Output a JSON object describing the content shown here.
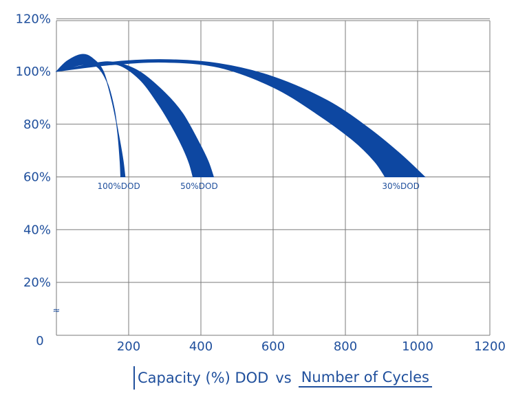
{
  "chart_data": {
    "type": "area",
    "title": "",
    "caption": {
      "left": "Capacity (%) DOD",
      "connector": "vs",
      "right": "Number of Cycles"
    },
    "xlim": [
      0,
      1200
    ],
    "ylim": [
      0,
      120
    ],
    "x_ticks": [
      200,
      400,
      600,
      800,
      1000,
      1200
    ],
    "x_tick_labels": [
      "200",
      "400",
      "600",
      "800",
      "1000",
      "1200"
    ],
    "y_ticks": [
      20,
      40,
      60,
      80,
      100,
      120
    ],
    "y_tick_labels": [
      "20%",
      "40%",
      "60%",
      "80%",
      "100%",
      "120%"
    ],
    "origin_label": "0",
    "axis_break_symbol": "≈",
    "grid": true,
    "color": "#0d47a1",
    "series": [
      {
        "name": "100%DOD",
        "upper": [
          [
            0,
            100
          ],
          [
            30,
            104
          ],
          [
            70,
            106.5
          ],
          [
            100,
            105
          ],
          [
            130,
            100
          ],
          [
            155,
            88
          ],
          [
            175,
            74
          ],
          [
            185,
            66
          ],
          [
            190,
            60
          ]
        ],
        "lower": [
          [
            0,
            100
          ],
          [
            30,
            101
          ],
          [
            70,
            102.5
          ],
          [
            110,
            102
          ],
          [
            140,
            96
          ],
          [
            160,
            86
          ],
          [
            170,
            76
          ],
          [
            176,
            66
          ],
          [
            178,
            60
          ]
        ]
      },
      {
        "name": "50%DOD",
        "upper": [
          [
            0,
            100
          ],
          [
            100,
            103
          ],
          [
            160,
            103.5
          ],
          [
            230,
            100
          ],
          [
            300,
            92
          ],
          [
            350,
            84
          ],
          [
            395,
            73
          ],
          [
            420,
            66
          ],
          [
            435,
            60
          ]
        ],
        "lower": [
          [
            0,
            100
          ],
          [
            100,
            102
          ],
          [
            170,
            102.5
          ],
          [
            230,
            97
          ],
          [
            280,
            88
          ],
          [
            320,
            79
          ],
          [
            350,
            71
          ],
          [
            368,
            65
          ],
          [
            378,
            60
          ]
        ]
      },
      {
        "name": "30%DOD",
        "upper": [
          [
            0,
            100
          ],
          [
            150,
            103.5
          ],
          [
            300,
            104.5
          ],
          [
            450,
            103
          ],
          [
            600,
            98
          ],
          [
            750,
            89
          ],
          [
            860,
            79
          ],
          [
            950,
            69
          ],
          [
            1020,
            60
          ]
        ],
        "lower": [
          [
            0,
            100
          ],
          [
            150,
            102.5
          ],
          [
            300,
            103.5
          ],
          [
            450,
            101.5
          ],
          [
            600,
            94
          ],
          [
            720,
            84
          ],
          [
            820,
            74
          ],
          [
            880,
            66
          ],
          [
            910,
            60
          ]
        ]
      }
    ]
  }
}
